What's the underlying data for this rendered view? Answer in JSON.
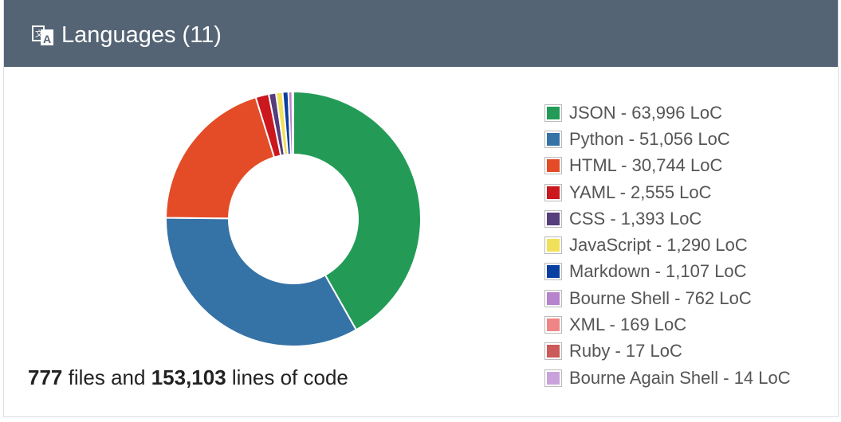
{
  "header": {
    "title": "Languages",
    "count": "(11)",
    "icon": "translate-icon",
    "background": "#546475"
  },
  "summary": {
    "files": "777",
    "files_suffix": " files and ",
    "lines": "153,103",
    "lines_suffix": " lines of code"
  },
  "chart_data": {
    "type": "pie",
    "donut": true,
    "legend_position": "right",
    "categories": [
      "JSON",
      "Python",
      "HTML",
      "YAML",
      "CSS",
      "JavaScript",
      "Markdown",
      "Bourne Shell",
      "XML",
      "Ruby",
      "Bourne Again Shell"
    ],
    "values": [
      63996,
      51056,
      30744,
      2555,
      1393,
      1290,
      1107,
      762,
      169,
      17,
      14
    ],
    "unit": "LoC",
    "colors": [
      "#239b56",
      "#3572a5",
      "#e34c26",
      "#cb171e",
      "#563d7c",
      "#f1e05a",
      "#083fa1",
      "#b783cc",
      "#f08585",
      "#cc5a5a",
      "#c9a2dc"
    ],
    "legend_labels": [
      "JSON - 63,996 LoC",
      "Python - 51,056 LoC",
      "HTML - 30,744 LoC",
      "YAML - 2,555 LoC",
      "CSS - 1,393 LoC",
      "JavaScript - 1,290 LoC",
      "Markdown - 1,107 LoC",
      "Bourne Shell - 762 LoC",
      "XML - 169 LoC",
      "Ruby - 17 LoC",
      "Bourne Again Shell - 14 LoC"
    ]
  }
}
